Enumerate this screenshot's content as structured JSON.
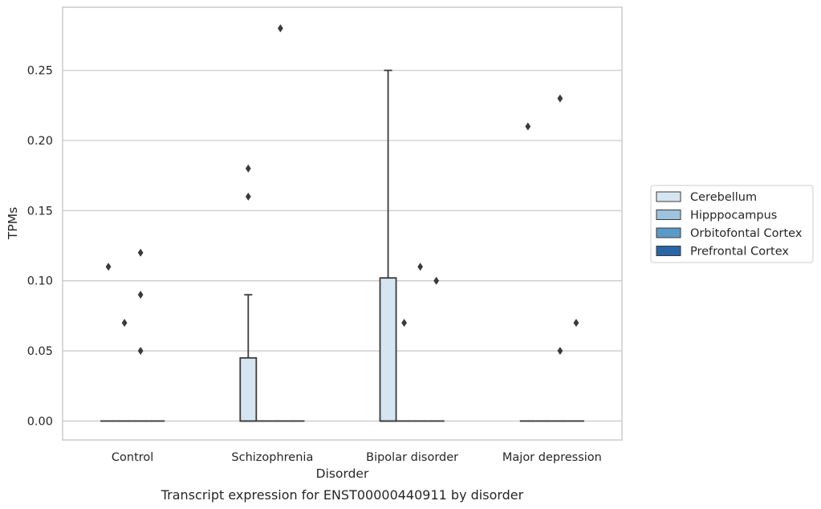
{
  "chart_data": {
    "type": "box",
    "title": "",
    "caption": "Transcript expression for ENST00000440911 by disorder",
    "xlabel": "Disorder",
    "ylabel": "TPMs",
    "ylim": [
      -0.0135,
      0.295
    ],
    "yticks": [
      0.0,
      0.05,
      0.1,
      0.15,
      0.2,
      0.25
    ],
    "ytick_labels": [
      "0.00",
      "0.05",
      "0.10",
      "0.15",
      "0.20",
      "0.25"
    ],
    "categories": [
      "Control",
      "Schizophrenia",
      "Bipolar disorder",
      "Major depression"
    ],
    "grid": "horizontal",
    "legend_position": "right",
    "series": [
      {
        "name": "Cerebellum",
        "color": "#d6e5f2",
        "boxes": [
          {
            "q1": 0,
            "median": 0,
            "q3": 0,
            "whisker_low": 0,
            "whisker_high": 0,
            "outliers": [
              0.11
            ]
          },
          {
            "q1": 0,
            "median": 0,
            "q3": 0.045,
            "whisker_low": 0,
            "whisker_high": 0.09,
            "outliers": [
              0.16,
              0.18
            ]
          },
          {
            "q1": 0,
            "median": 0,
            "q3": 0.102,
            "whisker_low": 0,
            "whisker_high": 0.25,
            "outliers": []
          },
          {
            "q1": 0,
            "median": 0,
            "q3": 0,
            "whisker_low": 0,
            "whisker_high": 0,
            "outliers": [
              0.21
            ]
          }
        ]
      },
      {
        "name": "Hipppocampus",
        "color": "#9dc3df",
        "boxes": [
          {
            "q1": 0,
            "median": 0,
            "q3": 0,
            "whisker_low": 0,
            "whisker_high": 0,
            "outliers": [
              0.07
            ]
          },
          {
            "q1": 0,
            "median": 0,
            "q3": 0,
            "whisker_low": 0,
            "whisker_high": 0,
            "outliers": []
          },
          {
            "q1": 0,
            "median": 0,
            "q3": 0,
            "whisker_low": 0,
            "whisker_high": 0,
            "outliers": [
              0.07
            ]
          },
          {
            "q1": 0,
            "median": 0,
            "q3": 0,
            "whisker_low": 0,
            "whisker_high": 0,
            "outliers": []
          }
        ]
      },
      {
        "name": "Orbitofontal Cortex",
        "color": "#5a9ac8",
        "boxes": [
          {
            "q1": 0,
            "median": 0,
            "q3": 0,
            "whisker_low": 0,
            "whisker_high": 0,
            "outliers": [
              0.05,
              0.09,
              0.12
            ]
          },
          {
            "q1": 0,
            "median": 0,
            "q3": 0,
            "whisker_low": 0,
            "whisker_high": 0,
            "outliers": [
              0.28
            ]
          },
          {
            "q1": 0,
            "median": 0,
            "q3": 0,
            "whisker_low": 0,
            "whisker_high": 0,
            "outliers": [
              0.11
            ]
          },
          {
            "q1": 0,
            "median": 0,
            "q3": 0,
            "whisker_low": 0,
            "whisker_high": 0,
            "outliers": [
              0.05,
              0.23
            ]
          }
        ]
      },
      {
        "name": "Prefrontal Cortex",
        "color": "#2866a6",
        "boxes": [
          {
            "q1": 0,
            "median": 0,
            "q3": 0,
            "whisker_low": 0,
            "whisker_high": 0,
            "outliers": []
          },
          {
            "q1": 0,
            "median": 0,
            "q3": 0,
            "whisker_low": 0,
            "whisker_high": 0,
            "outliers": []
          },
          {
            "q1": 0,
            "median": 0,
            "q3": 0,
            "whisker_low": 0,
            "whisker_high": 0,
            "outliers": [
              0.1
            ]
          },
          {
            "q1": 0,
            "median": 0,
            "q3": 0,
            "whisker_low": 0,
            "whisker_high": 0,
            "outliers": [
              0.07
            ]
          }
        ]
      }
    ]
  }
}
